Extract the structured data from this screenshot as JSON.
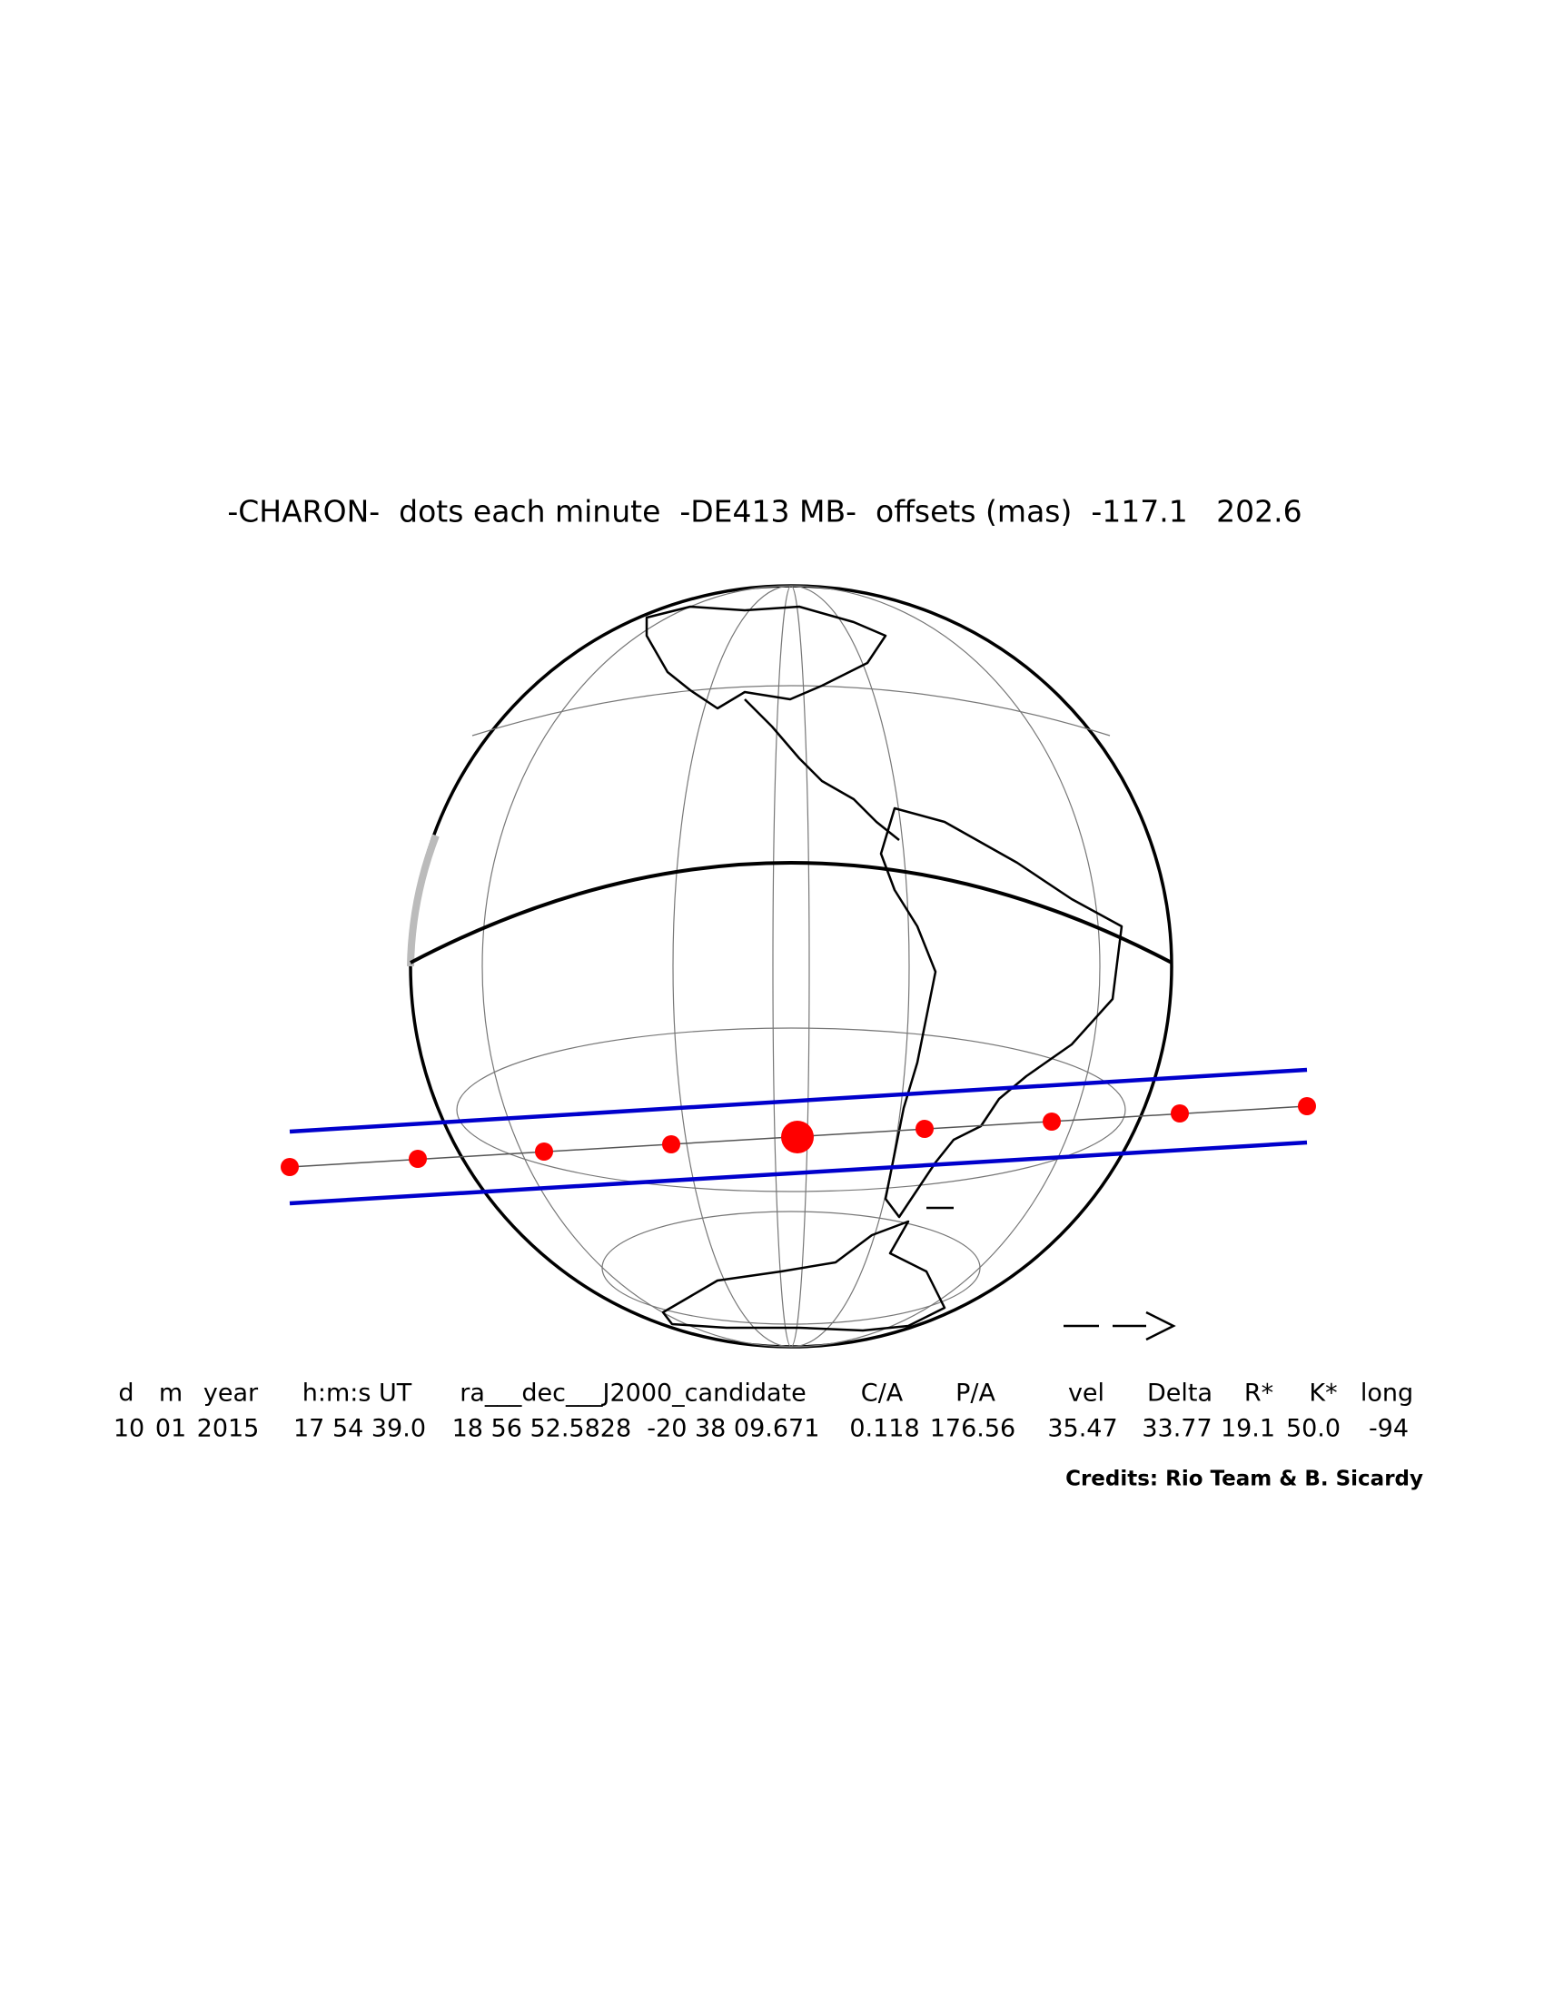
{
  "title": "-CHARON-  dots each minute  -DE413 MB-  offsets (mas)  -117.1   202.6",
  "table": {
    "headers": [
      "d",
      "m",
      "year",
      "h:m:s UT",
      "ra___dec___J2000_candidate",
      "C/A",
      "P/A",
      "vel",
      "Delta",
      "R*",
      "K*",
      "long"
    ],
    "values": [
      "10",
      "01",
      "2015",
      "17 54 39.0",
      "18 56 52.5828  -20 38 09.671",
      "0.118",
      "176.56",
      "35.47",
      "33.77",
      "19.1",
      "50.0",
      "-94"
    ]
  },
  "credits": "Credits: Rio Team & B. Sicardy"
}
